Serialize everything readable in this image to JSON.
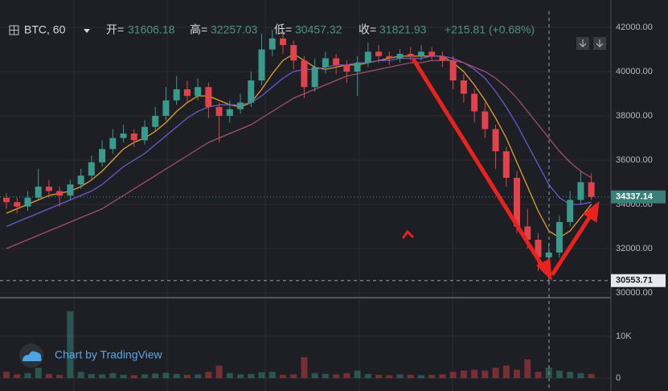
{
  "header": {
    "symbol": "BTC, 60",
    "open_label": "开=",
    "high_label": "高=",
    "low_label": "低=",
    "close_label": "收=",
    "change": "+215.81 (+0.68%)"
  },
  "branding": {
    "watermark": "Chart by TradingView"
  },
  "chart_data": {
    "type": "candlestick",
    "open": [
      34300,
      34100,
      33900,
      34300,
      34800,
      34600,
      34400,
      34900,
      35300,
      35900,
      36500,
      37000,
      37200,
      36900,
      37500,
      38000,
      38700,
      39200,
      38900,
      39300,
      38400,
      38000,
      38300,
      38600,
      39600,
      41000,
      41500,
      41200,
      40500,
      39300,
      40200,
      40600,
      40300,
      40000,
      40400,
      40900,
      40700,
      40600,
      40800,
      40700,
      40900,
      40700,
      40500,
      39600,
      39000,
      38200,
      37400,
      36400,
      35200,
      33000,
      32400,
      31606.18,
      31821.93,
      33200,
      34200,
      35000
    ],
    "high": [
      34500,
      34300,
      34600,
      35600,
      35100,
      34800,
      35100,
      35600,
      36200,
      36900,
      37400,
      37600,
      37400,
      37800,
      38400,
      39300,
      39800,
      39600,
      39700,
      39500,
      38600,
      38700,
      39000,
      40000,
      41700,
      41900,
      41800,
      41400,
      40700,
      40600,
      40900,
      40800,
      40500,
      40700,
      41300,
      41200,
      40900,
      41000,
      41100,
      41200,
      41100,
      40900,
      40700,
      39900,
      39200,
      38600,
      37600,
      36600,
      35500,
      33800,
      32700,
      32257.03,
      33500,
      34600,
      35500,
      35400
    ],
    "low": [
      33800,
      33600,
      33700,
      34200,
      34300,
      33900,
      34200,
      34700,
      35100,
      35700,
      36300,
      36800,
      36600,
      36700,
      37300,
      37800,
      38500,
      38600,
      38700,
      37900,
      36800,
      37700,
      38100,
      38400,
      39400,
      40700,
      40800,
      40100,
      38800,
      39100,
      39900,
      39900,
      39500,
      38900,
      40200,
      40400,
      40300,
      40400,
      40500,
      40500,
      40500,
      40200,
      39200,
      38600,
      37700,
      37000,
      35600,
      34800,
      32700,
      32000,
      31000,
      30457.32,
      31600,
      33000,
      34000,
      34200
    ],
    "close": [
      34100,
      33900,
      34300,
      34800,
      34600,
      34400,
      34900,
      35300,
      35900,
      36500,
      37000,
      37200,
      36900,
      37500,
      38000,
      38700,
      39200,
      38900,
      39300,
      38400,
      38000,
      38300,
      38600,
      39600,
      41000,
      41500,
      41200,
      40500,
      39300,
      40200,
      40600,
      40300,
      40000,
      40400,
      40900,
      40700,
      40600,
      40800,
      40700,
      40900,
      40700,
      40500,
      39600,
      39000,
      38200,
      37400,
      36400,
      35200,
      33000,
      32400,
      31606.18,
      31821.93,
      33200,
      34200,
      35000,
      34337.14
    ],
    "up_color": "#3a9a8c",
    "down_color": "#e0434b",
    "moving_averages": [
      {
        "color": "#e0a030",
        "values": [
          33600,
          33800,
          34000,
          34200,
          34400,
          34500,
          34600,
          34800,
          35100,
          35500,
          36000,
          36500,
          36800,
          37000,
          37300,
          37700,
          38200,
          38600,
          38900,
          38900,
          38700,
          38500,
          38400,
          38600,
          39200,
          39900,
          40500,
          40800,
          40500,
          40200,
          40100,
          40200,
          40300,
          40300,
          40400,
          40500,
          40600,
          40700,
          40700,
          40700,
          40700,
          40700,
          40400,
          40000,
          39400,
          38700,
          37900,
          37000,
          35900,
          34800,
          33700,
          32800,
          32500,
          32800,
          33400,
          34000
        ]
      },
      {
        "color": "#6a5acd",
        "values": [
          33000,
          33200,
          33400,
          33600,
          33800,
          34000,
          34200,
          34400,
          34600,
          34900,
          35300,
          35700,
          36000,
          36300,
          36700,
          37100,
          37500,
          37900,
          38200,
          38400,
          38500,
          38500,
          38500,
          38600,
          38900,
          39300,
          39700,
          40000,
          40100,
          40100,
          40200,
          40300,
          40300,
          40400,
          40400,
          40500,
          40500,
          40600,
          40600,
          40600,
          40700,
          40700,
          40600,
          40400,
          40100,
          39700,
          39100,
          38400,
          37600,
          36700,
          35800,
          34900,
          34300,
          34000,
          34000,
          34100
        ]
      },
      {
        "color": "#a0506e",
        "values": [
          32000,
          32200,
          32400,
          32600,
          32800,
          33000,
          33200,
          33400,
          33600,
          33800,
          34100,
          34400,
          34700,
          35000,
          35300,
          35600,
          35900,
          36200,
          36500,
          36800,
          37000,
          37200,
          37400,
          37600,
          37900,
          38200,
          38500,
          38800,
          39000,
          39200,
          39400,
          39600,
          39800,
          39900,
          40000,
          40100,
          40200,
          40300,
          40400,
          40400,
          40500,
          40500,
          40500,
          40400,
          40200,
          40000,
          39700,
          39300,
          38800,
          38200,
          37600,
          37000,
          36400,
          35900,
          35500,
          35200
        ]
      }
    ],
    "ylim": [
      29855,
      43236
    ],
    "yticks": [
      {
        "value": 30000,
        "label": "30000.00"
      },
      {
        "value": 32000,
        "label": "32000.00"
      },
      {
        "value": 34000,
        "label": "34000.00"
      },
      {
        "value": 36000,
        "label": "36000.00"
      },
      {
        "value": 38000,
        "label": "38000.00"
      },
      {
        "value": 40000,
        "label": "40000.00"
      },
      {
        "value": 42000,
        "label": "42000.00"
      }
    ],
    "grid": true,
    "last_price": 34337.14,
    "crosshair_price": 30553.71,
    "volume": {
      "values": [
        1500,
        900,
        1200,
        2500,
        1000,
        800,
        16000,
        1500,
        1000,
        900,
        1200,
        800,
        700,
        900,
        1100,
        1300,
        1000,
        800,
        900,
        1500,
        3000,
        1200,
        900,
        1000,
        1400,
        1500,
        800,
        900,
        5000,
        1200,
        1000,
        900,
        1200,
        1800,
        1000,
        800,
        700,
        900,
        800,
        700,
        800,
        900,
        1500,
        1800,
        2000,
        1800,
        2500,
        3000,
        2000,
        4500,
        1500,
        2500,
        1800,
        1500,
        1200,
        1000
      ],
      "ylim": [
        -3077,
        18846
      ],
      "yticks": [
        0,
        {
          "value": 10000,
          "label": "10K"
        }
      ]
    }
  }
}
